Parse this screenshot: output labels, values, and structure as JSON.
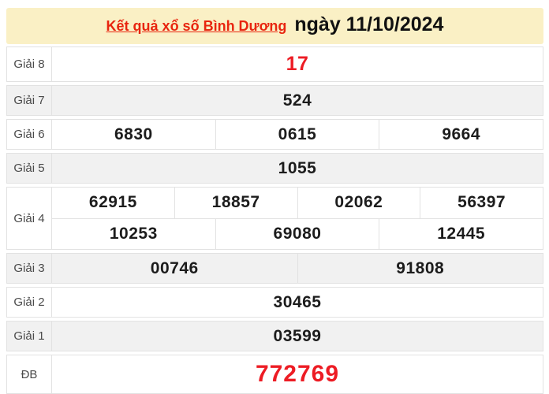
{
  "header": {
    "title": "Kết quả xổ số Bình Dương",
    "date": "ngày 11/10/2024"
  },
  "colors": {
    "header_bg": "#faf0c5",
    "title_red": "#e8250f",
    "number_red": "#ed1c24",
    "number_black": "#1c1c1c",
    "zebra_bg": "#f1f1f1",
    "border": "#e2e2e2",
    "label_text": "#4a4a4a"
  },
  "prizes": [
    {
      "label": "Giải 8",
      "highlight": true,
      "lines": [
        [
          "17"
        ]
      ]
    },
    {
      "label": "Giải 7",
      "highlight": false,
      "lines": [
        [
          "524"
        ]
      ]
    },
    {
      "label": "Giải 6",
      "highlight": false,
      "lines": [
        [
          "6830",
          "0615",
          "9664"
        ]
      ]
    },
    {
      "label": "Giải 5",
      "highlight": false,
      "lines": [
        [
          "1055"
        ]
      ]
    },
    {
      "label": "Giải 4",
      "highlight": false,
      "lines": [
        [
          "62915",
          "18857",
          "02062",
          "56397"
        ],
        [
          "10253",
          "69080",
          "12445"
        ]
      ]
    },
    {
      "label": "Giải 3",
      "highlight": false,
      "lines": [
        [
          "00746",
          "91808"
        ]
      ]
    },
    {
      "label": "Giải 2",
      "highlight": false,
      "lines": [
        [
          "30465"
        ]
      ]
    },
    {
      "label": "Giải 1",
      "highlight": false,
      "lines": [
        [
          "03599"
        ]
      ]
    },
    {
      "label": "ĐB",
      "highlight": true,
      "lines": [
        [
          "772769"
        ]
      ]
    }
  ]
}
